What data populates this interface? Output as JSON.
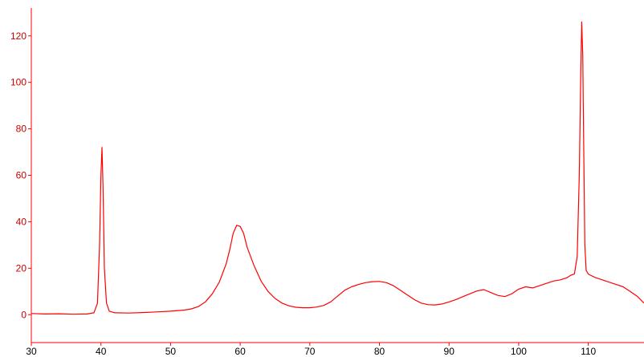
{
  "chart_data": {
    "type": "line",
    "title": "",
    "xlabel": "",
    "ylabel": "",
    "xlim": [
      30,
      118
    ],
    "ylim": [
      -12,
      132
    ],
    "x_ticks": [
      "30",
      "40",
      "50",
      "60",
      "70",
      "80",
      "90",
      "100",
      "110"
    ],
    "y_ticks": [
      "0",
      "20",
      "40",
      "60",
      "80",
      "100",
      "120"
    ],
    "grid": false,
    "colors": {
      "line": "#ff0000",
      "axes": "#ff0000",
      "y_tick_labels": "#cc0000",
      "x_tick_labels": "#000000"
    },
    "series": [
      {
        "x": [
          30,
          32,
          34,
          36,
          38,
          39,
          39.5,
          39.8,
          40.0,
          40.15,
          40.3,
          40.5,
          40.8,
          41.2,
          42,
          44,
          46,
          48,
          50,
          52,
          53,
          54,
          55,
          56,
          57,
          58,
          58.5,
          59,
          59.5,
          60,
          60.5,
          61,
          62,
          63,
          64,
          65,
          66,
          67,
          68,
          69,
          70,
          71,
          72,
          73,
          74,
          75,
          76,
          77,
          78,
          79,
          80,
          81,
          82,
          83,
          84,
          85,
          86,
          87,
          88,
          89,
          90,
          91,
          92,
          93,
          94,
          95,
          96,
          97,
          98,
          99,
          100,
          101,
          102,
          103,
          104,
          105,
          106,
          107,
          107.5,
          108,
          108.4,
          108.7,
          108.9,
          109.05,
          109.2,
          109.35,
          109.5,
          109.7,
          110,
          110.3,
          111,
          112,
          113,
          114,
          115,
          116,
          117,
          118
        ],
        "values": [
          0.5,
          0.3,
          0.4,
          0.2,
          0.3,
          0.8,
          5,
          30,
          60,
          72,
          55,
          20,
          5,
          1.5,
          0.8,
          0.7,
          0.9,
          1.2,
          1.5,
          2,
          2.5,
          3.5,
          5.5,
          9,
          14,
          22,
          28,
          35,
          38.5,
          38,
          35,
          29,
          21,
          14.5,
          10,
          7,
          5,
          3.8,
          3.2,
          3,
          3,
          3.3,
          4,
          5.5,
          8,
          10.5,
          12,
          13,
          13.8,
          14.2,
          14.3,
          13.8,
          12.5,
          10.5,
          8.5,
          6.5,
          5,
          4.3,
          4.2,
          4.6,
          5.5,
          6.5,
          7.8,
          9,
          10.2,
          10.8,
          9.5,
          8.3,
          7.8,
          9,
          11,
          12,
          11.5,
          12.5,
          13.5,
          14.5,
          15,
          16,
          17,
          17.5,
          25,
          60,
          100,
          126,
          112,
          70,
          30,
          19,
          17.5,
          17,
          16,
          15,
          14,
          13,
          12,
          10,
          8,
          5
        ]
      }
    ]
  }
}
